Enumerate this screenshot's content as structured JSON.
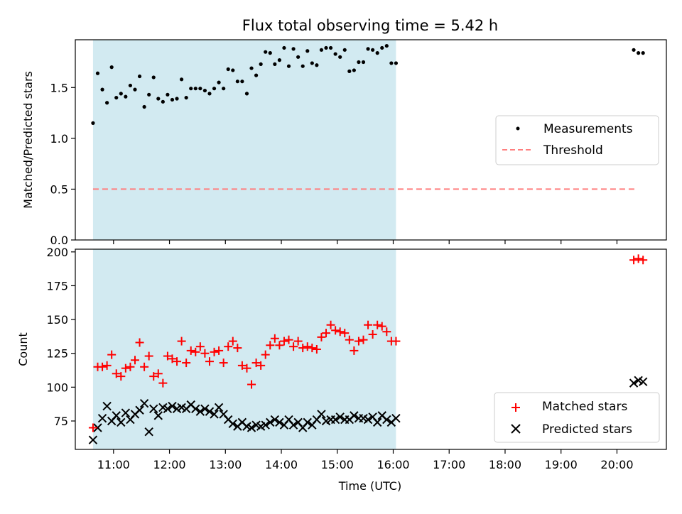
{
  "title": "Flux total observing time = 5.42 h",
  "colors": {
    "shade": "#add8e6",
    "measurement": "#000000",
    "threshold": "#ff7f7f",
    "matched": "#ff0000",
    "predicted": "#000000"
  },
  "chart_data": [
    {
      "type": "scatter",
      "ylabel": "Matched/Predicted stars",
      "xlabel": "",
      "xlim": [
        "10:19",
        "20:53"
      ],
      "ylim": [
        0,
        1.97
      ],
      "yticks": [
        0.0,
        0.5,
        1.0,
        1.5
      ],
      "ytick_labels": [
        "0.0",
        "0.5",
        "1.0",
        "1.5"
      ],
      "shaded_interval": [
        "10:38",
        "16:03"
      ],
      "legend": {
        "location": "center-right",
        "entries": [
          "Measurements",
          "Threshold"
        ]
      },
      "threshold": {
        "name": "Threshold",
        "x": [
          "10:38",
          "20:20"
        ],
        "y": 0.5
      },
      "series": [
        {
          "name": "Measurements",
          "marker": "dot",
          "x": [
            "10:38",
            "10:43",
            "10:48",
            "10:53",
            "10:58",
            "11:03",
            "11:08",
            "11:13",
            "11:18",
            "11:23",
            "11:28",
            "11:33",
            "11:38",
            "11:43",
            "11:48",
            "11:53",
            "11:58",
            "12:03",
            "12:08",
            "12:13",
            "12:18",
            "12:23",
            "12:28",
            "12:33",
            "12:38",
            "12:43",
            "12:48",
            "12:53",
            "12:58",
            "13:03",
            "13:08",
            "13:13",
            "13:18",
            "13:23",
            "13:28",
            "13:33",
            "13:38",
            "13:43",
            "13:48",
            "13:53",
            "13:58",
            "14:03",
            "14:08",
            "14:13",
            "14:18",
            "14:23",
            "14:28",
            "14:33",
            "14:38",
            "14:43",
            "14:48",
            "14:53",
            "14:58",
            "15:03",
            "15:08",
            "15:13",
            "15:18",
            "15:23",
            "15:28",
            "15:33",
            "15:38",
            "15:43",
            "15:48",
            "15:53",
            "15:58",
            "16:03",
            "20:18",
            "20:23",
            "20:28"
          ],
          "y": [
            1.15,
            1.64,
            1.48,
            1.35,
            1.7,
            1.4,
            1.44,
            1.41,
            1.52,
            1.48,
            1.61,
            1.31,
            1.43,
            1.6,
            1.39,
            1.36,
            1.43,
            1.38,
            1.39,
            1.58,
            1.4,
            1.49,
            1.49,
            1.49,
            1.47,
            1.44,
            1.49,
            1.55,
            1.49,
            1.68,
            1.67,
            1.56,
            1.56,
            1.44,
            1.69,
            1.62,
            1.73,
            1.85,
            1.84,
            1.73,
            1.77,
            1.89,
            1.71,
            1.88,
            1.8,
            1.71,
            1.86,
            1.74,
            1.72,
            1.87,
            1.89,
            1.89,
            1.83,
            1.8,
            1.87,
            1.66,
            1.67,
            1.75,
            1.75,
            1.88,
            1.87,
            1.84,
            1.89,
            1.91,
            1.74,
            1.74,
            1.87,
            1.84,
            1.84
          ]
        }
      ]
    },
    {
      "type": "scatter",
      "ylabel": "Count",
      "xlabel": "Time (UTC)",
      "xlim": [
        "10:19",
        "20:53"
      ],
      "ylim": [
        54,
        202
      ],
      "yticks": [
        75,
        100,
        125,
        150,
        175,
        200
      ],
      "ytick_labels": [
        "75",
        "100",
        "125",
        "150",
        "175",
        "200"
      ],
      "xticks": [
        "11:00",
        "12:00",
        "13:00",
        "14:00",
        "15:00",
        "16:00",
        "17:00",
        "18:00",
        "19:00",
        "20:00"
      ],
      "shaded_interval": [
        "10:38",
        "16:03"
      ],
      "legend": {
        "location": "lower-right",
        "entries": [
          "Matched stars",
          "Predicted stars"
        ]
      },
      "series": [
        {
          "name": "Matched stars",
          "marker": "plus",
          "x": [
            "10:38",
            "10:43",
            "10:48",
            "10:53",
            "10:58",
            "11:03",
            "11:08",
            "11:13",
            "11:18",
            "11:23",
            "11:28",
            "11:33",
            "11:38",
            "11:43",
            "11:48",
            "11:53",
            "11:58",
            "12:03",
            "12:08",
            "12:13",
            "12:18",
            "12:23",
            "12:28",
            "12:33",
            "12:38",
            "12:43",
            "12:48",
            "12:53",
            "12:58",
            "13:03",
            "13:08",
            "13:13",
            "13:18",
            "13:23",
            "13:28",
            "13:33",
            "13:38",
            "13:43",
            "13:48",
            "13:53",
            "13:58",
            "14:03",
            "14:08",
            "14:13",
            "14:18",
            "14:23",
            "14:28",
            "14:33",
            "14:38",
            "14:43",
            "14:48",
            "14:53",
            "14:58",
            "15:03",
            "15:08",
            "15:13",
            "15:18",
            "15:23",
            "15:28",
            "15:33",
            "15:38",
            "15:43",
            "15:48",
            "15:53",
            "15:58",
            "16:03",
            "20:18",
            "20:23",
            "20:28"
          ],
          "y": [
            70,
            115,
            115,
            116,
            124,
            110,
            108,
            114,
            115,
            120,
            133,
            115,
            123,
            108,
            110,
            103,
            123,
            121,
            119,
            134,
            118,
            127,
            126,
            130,
            125,
            119,
            126,
            127,
            118,
            130,
            134,
            129,
            116,
            114,
            102,
            118,
            116,
            124,
            131,
            136,
            131,
            134,
            135,
            130,
            134,
            129,
            130,
            129,
            128,
            137,
            140,
            146,
            142,
            141,
            140,
            135,
            127,
            134,
            135,
            146,
            139,
            146,
            145,
            141,
            134,
            134,
            194,
            195,
            194
          ]
        },
        {
          "name": "Predicted stars",
          "marker": "x",
          "x": [
            "10:38",
            "10:43",
            "10:48",
            "10:53",
            "10:58",
            "11:03",
            "11:08",
            "11:13",
            "11:18",
            "11:23",
            "11:28",
            "11:33",
            "11:38",
            "11:43",
            "11:48",
            "11:53",
            "11:58",
            "12:03",
            "12:08",
            "12:13",
            "12:18",
            "12:23",
            "12:28",
            "12:33",
            "12:38",
            "12:43",
            "12:48",
            "12:53",
            "12:58",
            "13:03",
            "13:08",
            "13:13",
            "13:18",
            "13:23",
            "13:28",
            "13:33",
            "13:38",
            "13:43",
            "13:48",
            "13:53",
            "13:58",
            "14:03",
            "14:08",
            "14:13",
            "14:18",
            "14:23",
            "14:28",
            "14:33",
            "14:38",
            "14:43",
            "14:48",
            "14:53",
            "14:58",
            "15:03",
            "15:08",
            "15:13",
            "15:18",
            "15:23",
            "15:28",
            "15:33",
            "15:38",
            "15:43",
            "15:48",
            "15:53",
            "15:58",
            "16:03",
            "20:18",
            "20:23",
            "20:28"
          ],
          "y": [
            61,
            70,
            77,
            86,
            75,
            79,
            74,
            81,
            76,
            80,
            83,
            88,
            67,
            84,
            79,
            85,
            84,
            86,
            84,
            85,
            84,
            87,
            84,
            82,
            84,
            82,
            80,
            85,
            80,
            76,
            73,
            71,
            74,
            71,
            70,
            72,
            71,
            72,
            74,
            76,
            74,
            72,
            76,
            72,
            74,
            70,
            74,
            72,
            76,
            80,
            75,
            76,
            76,
            78,
            76,
            76,
            79,
            77,
            77,
            76,
            78,
            74,
            79,
            76,
            74,
            77,
            103,
            105,
            104
          ]
        }
      ]
    }
  ]
}
